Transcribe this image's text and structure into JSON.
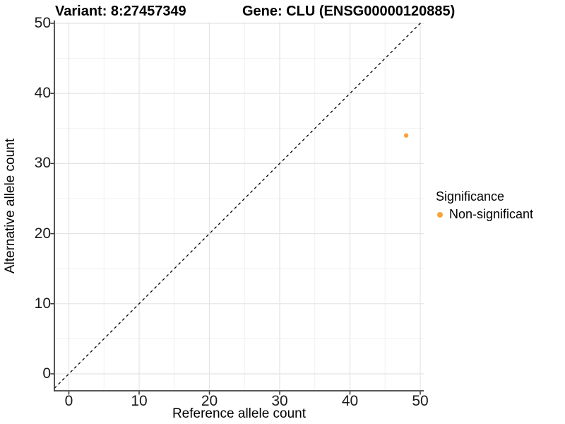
{
  "chart_data": {
    "type": "scatter",
    "title_left": "Variant: 8:27457349",
    "title_right": "Gene: CLU (ENSG00000120885)",
    "xlabel": "Reference allele count",
    "ylabel": "Alternative allele count",
    "xlim": [
      0,
      50
    ],
    "ylim": [
      0,
      50
    ],
    "x_major_ticks": [
      0,
      10,
      20,
      30,
      40,
      50
    ],
    "y_major_ticks": [
      0,
      10,
      20,
      30,
      40,
      50
    ],
    "x_minor_ticks": [
      5,
      15,
      25,
      35,
      45
    ],
    "y_minor_ticks": [
      5,
      15,
      25,
      35,
      45
    ],
    "grid": true,
    "identity_line": {
      "equation": "y = x",
      "style": "dashed",
      "color": "#000000"
    },
    "points": [
      {
        "x": 48,
        "y": 34,
        "series": "Non-significant"
      }
    ],
    "legend": {
      "title": "Significance",
      "position": "right",
      "entries": [
        {
          "label": "Non-significant",
          "color": "#FAA43A"
        }
      ]
    }
  }
}
